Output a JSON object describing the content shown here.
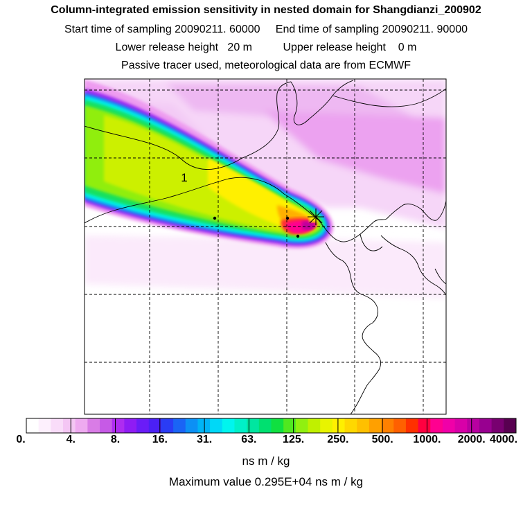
{
  "header": {
    "title": "Column-integrated emission sensitivity in nested domain for Shangdianzi_200902",
    "line2": "Start time of sampling 20090211. 60000     End time of sampling 20090211. 90000",
    "line3": "Lower release height   20 m          Upper release height    0 m",
    "line4": "Passive tracer used, meteorological data are from ECMWF"
  },
  "map": {
    "plume_label": "1",
    "receptor_icon": "star-marker-icon"
  },
  "colorbar": {
    "colors": [
      "#ffffff",
      "#fdf0fd",
      "#f9dcf9",
      "#f4c6f4",
      "#eeaaf0",
      "#d97ce6",
      "#c65ae6",
      "#ae2cf0",
      "#8f1cf4",
      "#6a1cf7",
      "#4b20f5",
      "#2a3cf5",
      "#1a64f5",
      "#0c90f5",
      "#00b4f6",
      "#00d8f7",
      "#00f5ee",
      "#00f0c8",
      "#00e6a0",
      "#00e070",
      "#10e040",
      "#50e820",
      "#90f010",
      "#c0f000",
      "#e8f400",
      "#fff000",
      "#ffd800",
      "#ffc000",
      "#ffa000",
      "#ff8000",
      "#ff6000",
      "#ff3000",
      "#ff0040",
      "#ff0090",
      "#f000a8",
      "#d800a8",
      "#b800a0",
      "#980090",
      "#780070",
      "#580050"
    ],
    "ticks": [
      "0.",
      "4.",
      "8.",
      "16.",
      "31.",
      "63.",
      "125.",
      "250.",
      "500.",
      "1000.",
      "2000.",
      "4000."
    ],
    "units": "ns m / kg"
  },
  "max_value": "Maximum value  0.295E+04 ns m / kg"
}
